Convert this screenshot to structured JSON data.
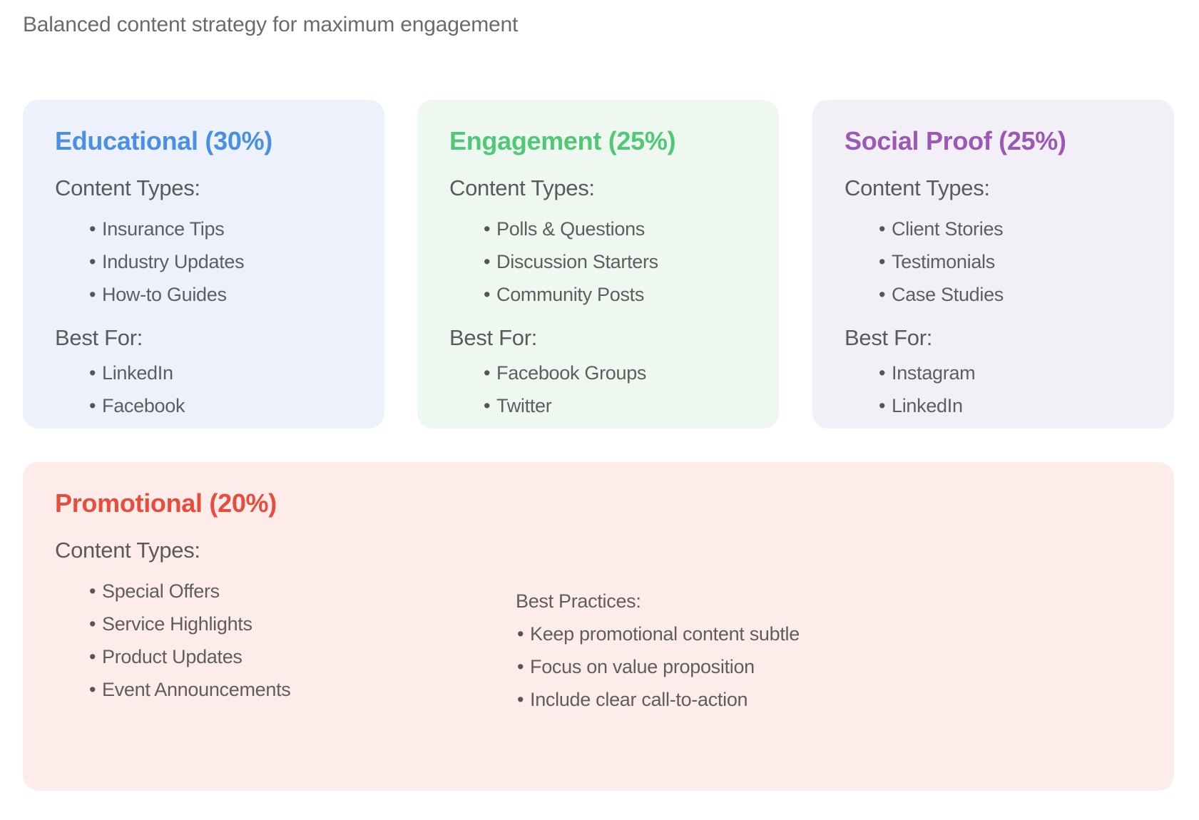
{
  "subtitle": "Balanced content strategy for maximum engagement",
  "colors": {
    "educational": "#4a90e2",
    "engagement": "#50c878",
    "social_proof": "#9b59b6",
    "promotional": "#e74c3c",
    "educational_bg": "#edf1fb",
    "engagement_bg": "#eef7f0",
    "social_proof_bg": "#f3eff7",
    "promotional_bg": "#fdecea"
  },
  "labels": {
    "content_types": "Content Types:",
    "best_for": "Best For:",
    "bullet": "•"
  },
  "cards": [
    {
      "title": "Educational (30%)",
      "content_types": [
        "Insurance Tips",
        "Industry Updates",
        "How-to Guides"
      ],
      "best_for": [
        "LinkedIn",
        "Facebook"
      ]
    },
    {
      "title": "Engagement (25%)",
      "content_types": [
        "Polls & Questions",
        "Discussion Starters",
        "Community Posts"
      ],
      "best_for": [
        "Facebook Groups",
        "Twitter"
      ]
    },
    {
      "title": "Social Proof (25%)",
      "content_types": [
        "Client Stories",
        "Testimonials",
        "Case Studies"
      ],
      "best_for": [
        "Instagram",
        "LinkedIn"
      ]
    }
  ],
  "promotional": {
    "title": "Promotional (20%)",
    "content_types": [
      "Special Offers",
      "Service Highlights",
      "Product Updates",
      "Event Announcements"
    ],
    "best_practices_label": "Best Practices:",
    "best_practices": [
      "Keep promotional content subtle",
      "Focus on value proposition",
      "Include clear call-to-action"
    ]
  }
}
